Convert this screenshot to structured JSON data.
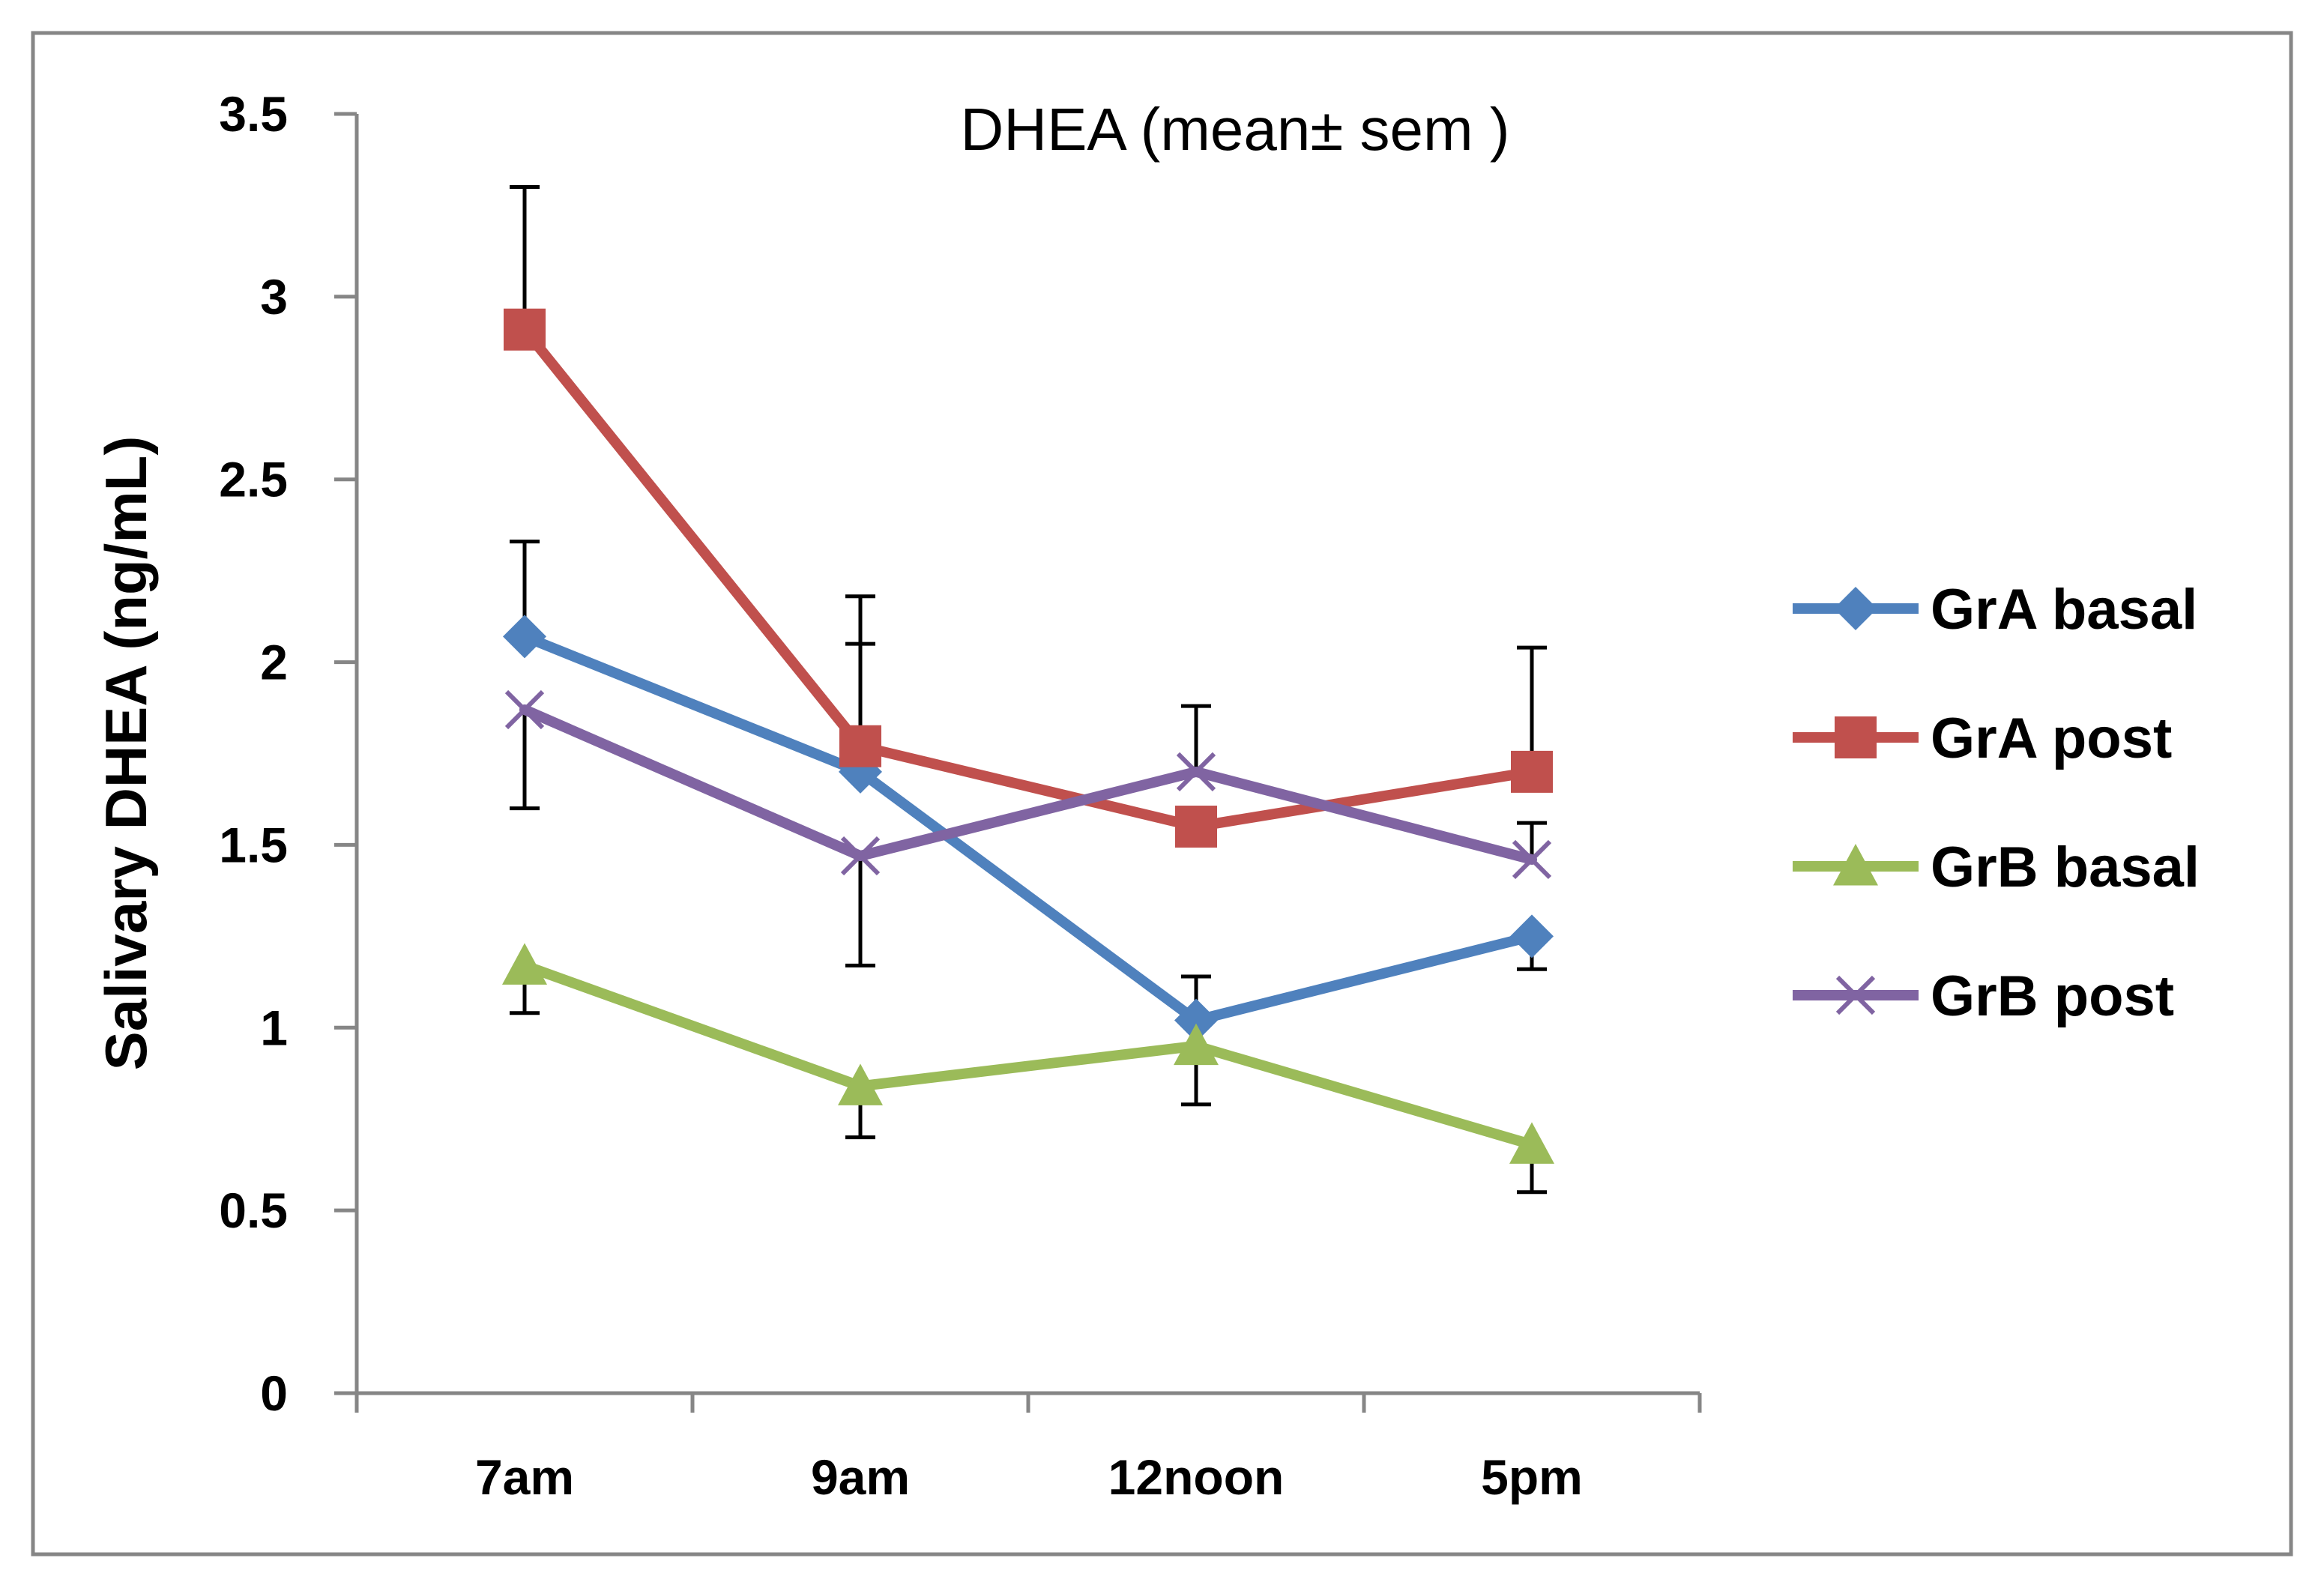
{
  "chart_data": {
    "type": "line",
    "title": "DHEA (mean± sem )",
    "xlabel": "",
    "ylabel": "Salivary DHEA (ng/mL)",
    "categories": [
      "7am",
      "9am",
      "12noon",
      "5pm"
    ],
    "ylim": [
      0,
      3.5
    ],
    "yticks": [
      0,
      0.5,
      1,
      1.5,
      2,
      2.5,
      3,
      3.5
    ],
    "ytick_labels": [
      "0",
      "0.5",
      "1",
      "1.5",
      "2",
      "2.5",
      "3",
      "3.5"
    ],
    "grid": false,
    "legend_position": "right",
    "series": [
      {
        "name": "GrA basal",
        "values": [
          2.07,
          1.7,
          1.02,
          1.25
        ],
        "error_upper": [
          2.33,
          2.05,
          1.14,
          1.25
        ],
        "error_lower": [
          2.07,
          1.7,
          1.02,
          1.16
        ],
        "color": "#4F81BD",
        "marker": "diamond"
      },
      {
        "name": "GrA post",
        "values": [
          2.91,
          1.77,
          1.55,
          1.7
        ],
        "error_upper": [
          3.3,
          2.18,
          1.55,
          2.04
        ],
        "error_lower": [
          2.91,
          1.77,
          1.55,
          1.7
        ],
        "color": "#C0504D",
        "marker": "square"
      },
      {
        "name": "GrB basal",
        "values": [
          1.17,
          0.84,
          0.95,
          0.68
        ],
        "error_upper": [
          1.17,
          0.84,
          0.95,
          0.68
        ],
        "error_lower": [
          1.04,
          0.7,
          0.79,
          0.55
        ],
        "color": "#9BBB59",
        "marker": "triangle"
      },
      {
        "name": "GrB post",
        "values": [
          1.87,
          1.47,
          1.7,
          1.46
        ],
        "error_upper": [
          1.87,
          1.47,
          1.88,
          1.56
        ],
        "error_lower": [
          1.6,
          1.17,
          1.7,
          1.46
        ],
        "color": "#8064A2",
        "marker": "x"
      }
    ]
  }
}
